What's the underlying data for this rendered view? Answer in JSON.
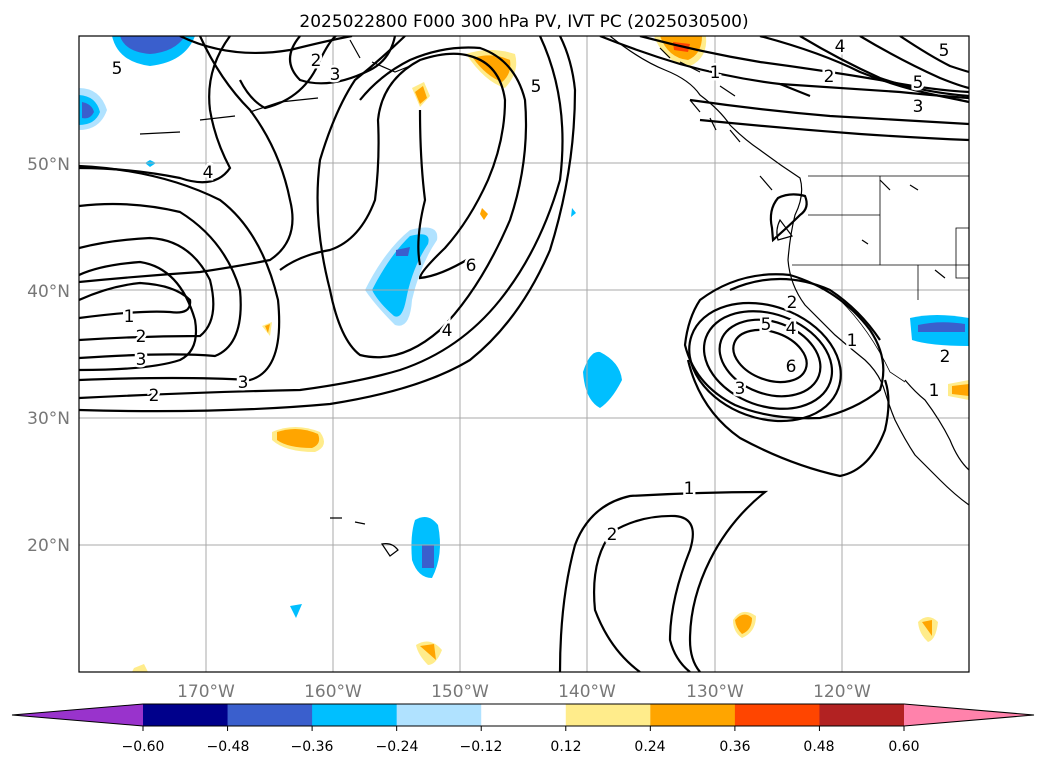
{
  "title": "2025022800 F000 300 hPa PV, IVT PC (2025030500)",
  "chart_data": {
    "type": "contour_map",
    "title": "2025022800 F000 300 hPa PV, IVT PC (2025030500)",
    "projection": "equirectangular",
    "lon_range": [
      -180,
      -110
    ],
    "lat_range": [
      10,
      60
    ],
    "grid": true,
    "x_ticks": [
      "170°W",
      "160°W",
      "150°W",
      "140°W",
      "130°W",
      "120°W"
    ],
    "x_tick_values": [
      -170,
      -160,
      -150,
      -140,
      -130,
      -120
    ],
    "y_ticks": [
      "20°N",
      "30°N",
      "40°N",
      "50°N"
    ],
    "y_tick_values": [
      20,
      30,
      40,
      50
    ],
    "colorbar": {
      "orientation": "horizontal",
      "extend": "both",
      "ticks": [
        "−0.60",
        "−0.48",
        "−0.36",
        "−0.24",
        "−0.12",
        "0.12",
        "0.24",
        "0.36",
        "0.48",
        "0.60"
      ],
      "levels": [
        -0.6,
        -0.48,
        -0.36,
        -0.24,
        -0.12,
        0.12,
        0.24,
        0.36,
        0.48,
        0.6
      ],
      "colors": [
        "#9933cc",
        "#00008b",
        "#3a5fcd",
        "#00bfff",
        "#b0e2ff",
        "#ffffff",
        "#ffec8b",
        "#ffa500",
        "#ff4500",
        "#b22222",
        "#ff82ab"
      ]
    },
    "contour_labels": [
      "1",
      "2",
      "3",
      "4",
      "5",
      "6"
    ]
  },
  "icons": {
    "colorbar_left_extend": "triangle-left",
    "colorbar_right_extend": "triangle-right"
  }
}
